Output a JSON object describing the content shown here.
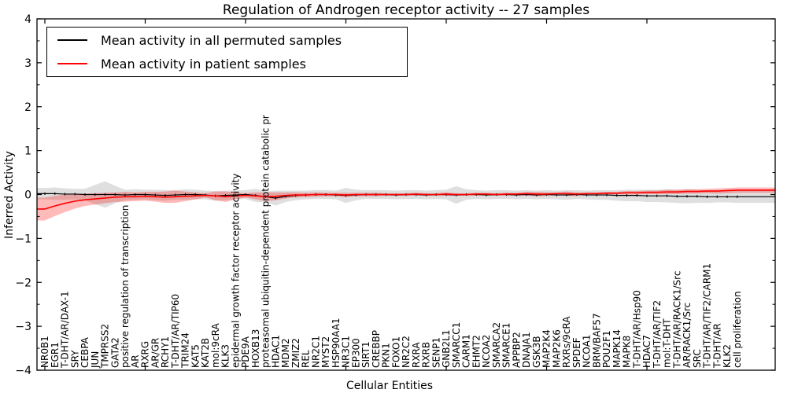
{
  "title": "Regulation of Androgen receptor activity -- 27 samples",
  "axes": {
    "xlabel": "Cellular Entities",
    "ylabel": "Inferred Activity",
    "ytick_values": [
      4,
      3,
      2,
      1,
      0,
      -1,
      -2,
      -3,
      -4
    ],
    "ytick_labels": [
      "4",
      "3",
      "2",
      "1",
      "0",
      "−1",
      "−2",
      "−3",
      "−4"
    ],
    "ylim": [
      -4,
      4
    ]
  },
  "legend": {
    "position": "upper left",
    "items": [
      {
        "label": "Mean activity in all permuted samples",
        "color": "#000000"
      },
      {
        "label": "Mean activity in patient samples",
        "color": "#ff0000"
      }
    ]
  },
  "chart_data": {
    "type": "line",
    "title": "Regulation of Androgen receptor activity -- 27 samples",
    "xlabel": "Cellular Entities",
    "ylabel": "Inferred Activity",
    "ylim": [
      -4,
      4
    ],
    "grid": false,
    "legend_position": "upper left",
    "categories": [
      "NR0B1",
      "EGR1",
      "T-DHT/AR/DAX-1",
      "SRY",
      "CEBPA",
      "JUN",
      "TMPRSS2",
      "GATA2",
      "positive regulation of transcription",
      "AR",
      "RXRG",
      "AR/GR",
      "RCHY1",
      "T-DHT/AR/TIP60",
      "TRIM24",
      "KAT5",
      "KAT2B",
      "mol:9cRA",
      "KLK3",
      "epidermal growth factor receptor activity",
      "PDE9A",
      "HOXB13",
      "proteasomal ubiquitin-dependent protein catabolic pr",
      "HDAC1",
      "MDM2",
      "ZMIZ2",
      "REL",
      "NR2C1",
      "MYST2",
      "HSP90AA1",
      "NR3C1",
      "EP300",
      "SIRT1",
      "CREBBP",
      "PKN1",
      "FOXO1",
      "NR2C2",
      "RXRA",
      "RXRB",
      "SENP1",
      "GNB2L1",
      "SMARCC1",
      "CARM1",
      "EHMT2",
      "NCOA2",
      "SMARCA2",
      "SMARCE1",
      "APPBP2",
      "DNAJA1",
      "GSK3B",
      "MAP2K4",
      "MAP2K6",
      "RXRs/9cRA",
      "SPDEF",
      "NCOA1",
      "BRM/BAF57",
      "POU2F1",
      "MAPK14",
      "MAPK8",
      "T-DHT/AR/Hsp90",
      "HDAC7",
      "T-DHT/AR/TIF2",
      "mol:T-DHT",
      "T-DHT/AR/RACK1/Src",
      "AR/RACK1/Src",
      "SRC",
      "T-DHT/AR/TIF2/CARM1",
      "T-DHT/AR",
      "KLK2",
      "cell proliferation"
    ],
    "series": [
      {
        "name": "Mean activity in all permuted samples",
        "color": "#000000",
        "line_width": 1.2,
        "markers": true,
        "band_color": "rgba(128,128,128,0.25)",
        "values": [
          0.02,
          0.02,
          0.01,
          0.01,
          0.0,
          0.0,
          0.0,
          0.0,
          -0.01,
          0.0,
          0.0,
          -0.01,
          -0.02,
          -0.01,
          0.0,
          0.0,
          -0.01,
          -0.03,
          -0.02,
          -0.01,
          0.0,
          -0.02,
          -0.05,
          -0.08,
          -0.04,
          -0.02,
          -0.01,
          0.0,
          0.0,
          -0.01,
          -0.02,
          -0.01,
          0.0,
          0.0,
          0.0,
          -0.01,
          0.0,
          0.0,
          -0.01,
          0.0,
          0.0,
          -0.01,
          0.0,
          0.0,
          -0.01,
          0.0,
          0.0,
          -0.01,
          0.0,
          -0.01,
          0.0,
          -0.01,
          -0.01,
          0.0,
          -0.01,
          -0.01,
          -0.01,
          -0.02,
          -0.02,
          -0.02,
          -0.03,
          -0.03,
          -0.03,
          -0.04,
          -0.04,
          -0.04,
          -0.05,
          -0.05,
          -0.05,
          -0.05
        ],
        "band_halfwidth": [
          0.13,
          0.14,
          0.13,
          0.12,
          0.13,
          0.22,
          0.3,
          0.2,
          0.12,
          0.12,
          0.11,
          0.12,
          0.12,
          0.11,
          0.12,
          0.11,
          0.1,
          0.11,
          0.11,
          0.1,
          0.1,
          0.15,
          0.12,
          0.17,
          0.13,
          0.11,
          0.1,
          0.1,
          0.1,
          0.1,
          0.17,
          0.12,
          0.1,
          0.1,
          0.1,
          0.1,
          0.1,
          0.1,
          0.1,
          0.1,
          0.11,
          0.2,
          0.12,
          0.1,
          0.1,
          0.1,
          0.1,
          0.1,
          0.1,
          0.1,
          0.1,
          0.1,
          0.11,
          0.1,
          0.1,
          0.11,
          0.11,
          0.12,
          0.13,
          0.13,
          0.14,
          0.14,
          0.15,
          0.15,
          0.16,
          0.15,
          0.14,
          0.13,
          0.13,
          0.14
        ]
      },
      {
        "name": "Mean activity in patient samples",
        "color": "#ff0000",
        "line_width": 1.6,
        "markers": false,
        "band_color": "rgba(255,0,0,0.27)",
        "values": [
          -0.33,
          -0.26,
          -0.2,
          -0.15,
          -0.12,
          -0.1,
          -0.08,
          -0.06,
          -0.05,
          -0.05,
          -0.04,
          -0.05,
          -0.06,
          -0.05,
          -0.04,
          -0.03,
          -0.02,
          -0.03,
          -0.05,
          -0.03,
          -0.02,
          -0.03,
          -0.05,
          -0.04,
          -0.02,
          -0.01,
          -0.01,
          0.0,
          0.0,
          0.0,
          -0.01,
          0.0,
          0.0,
          0.0,
          0.0,
          0.0,
          0.0,
          0.01,
          0.0,
          0.0,
          0.01,
          0.0,
          0.0,
          0.01,
          0.01,
          0.0,
          0.01,
          0.01,
          0.02,
          0.01,
          0.01,
          0.02,
          0.02,
          0.01,
          0.02,
          0.02,
          0.03,
          0.03,
          0.04,
          0.04,
          0.05,
          0.05,
          0.06,
          0.06,
          0.07,
          0.07,
          0.08,
          0.08,
          0.09,
          0.1
        ],
        "band_halfwidth": [
          0.26,
          0.23,
          0.2,
          0.17,
          0.14,
          0.13,
          0.12,
          0.11,
          0.11,
          0.1,
          0.1,
          0.11,
          0.13,
          0.14,
          0.11,
          0.08,
          0.05,
          0.1,
          0.12,
          0.08,
          0.05,
          0.08,
          0.1,
          0.09,
          0.07,
          0.06,
          0.05,
          0.05,
          0.04,
          0.04,
          0.05,
          0.04,
          0.04,
          0.04,
          0.03,
          0.03,
          0.03,
          0.03,
          0.03,
          0.03,
          0.04,
          0.03,
          0.03,
          0.03,
          0.03,
          0.03,
          0.03,
          0.03,
          0.04,
          0.05,
          0.04,
          0.03,
          0.05,
          0.04,
          0.03,
          0.03,
          0.03,
          0.03,
          0.04,
          0.04,
          0.04,
          0.04,
          0.05,
          0.05,
          0.05,
          0.05,
          0.05,
          0.06,
          0.06,
          0.06
        ]
      }
    ],
    "x_major_tick_indices": [
      0,
      10,
      20,
      30,
      40,
      50,
      60
    ]
  }
}
